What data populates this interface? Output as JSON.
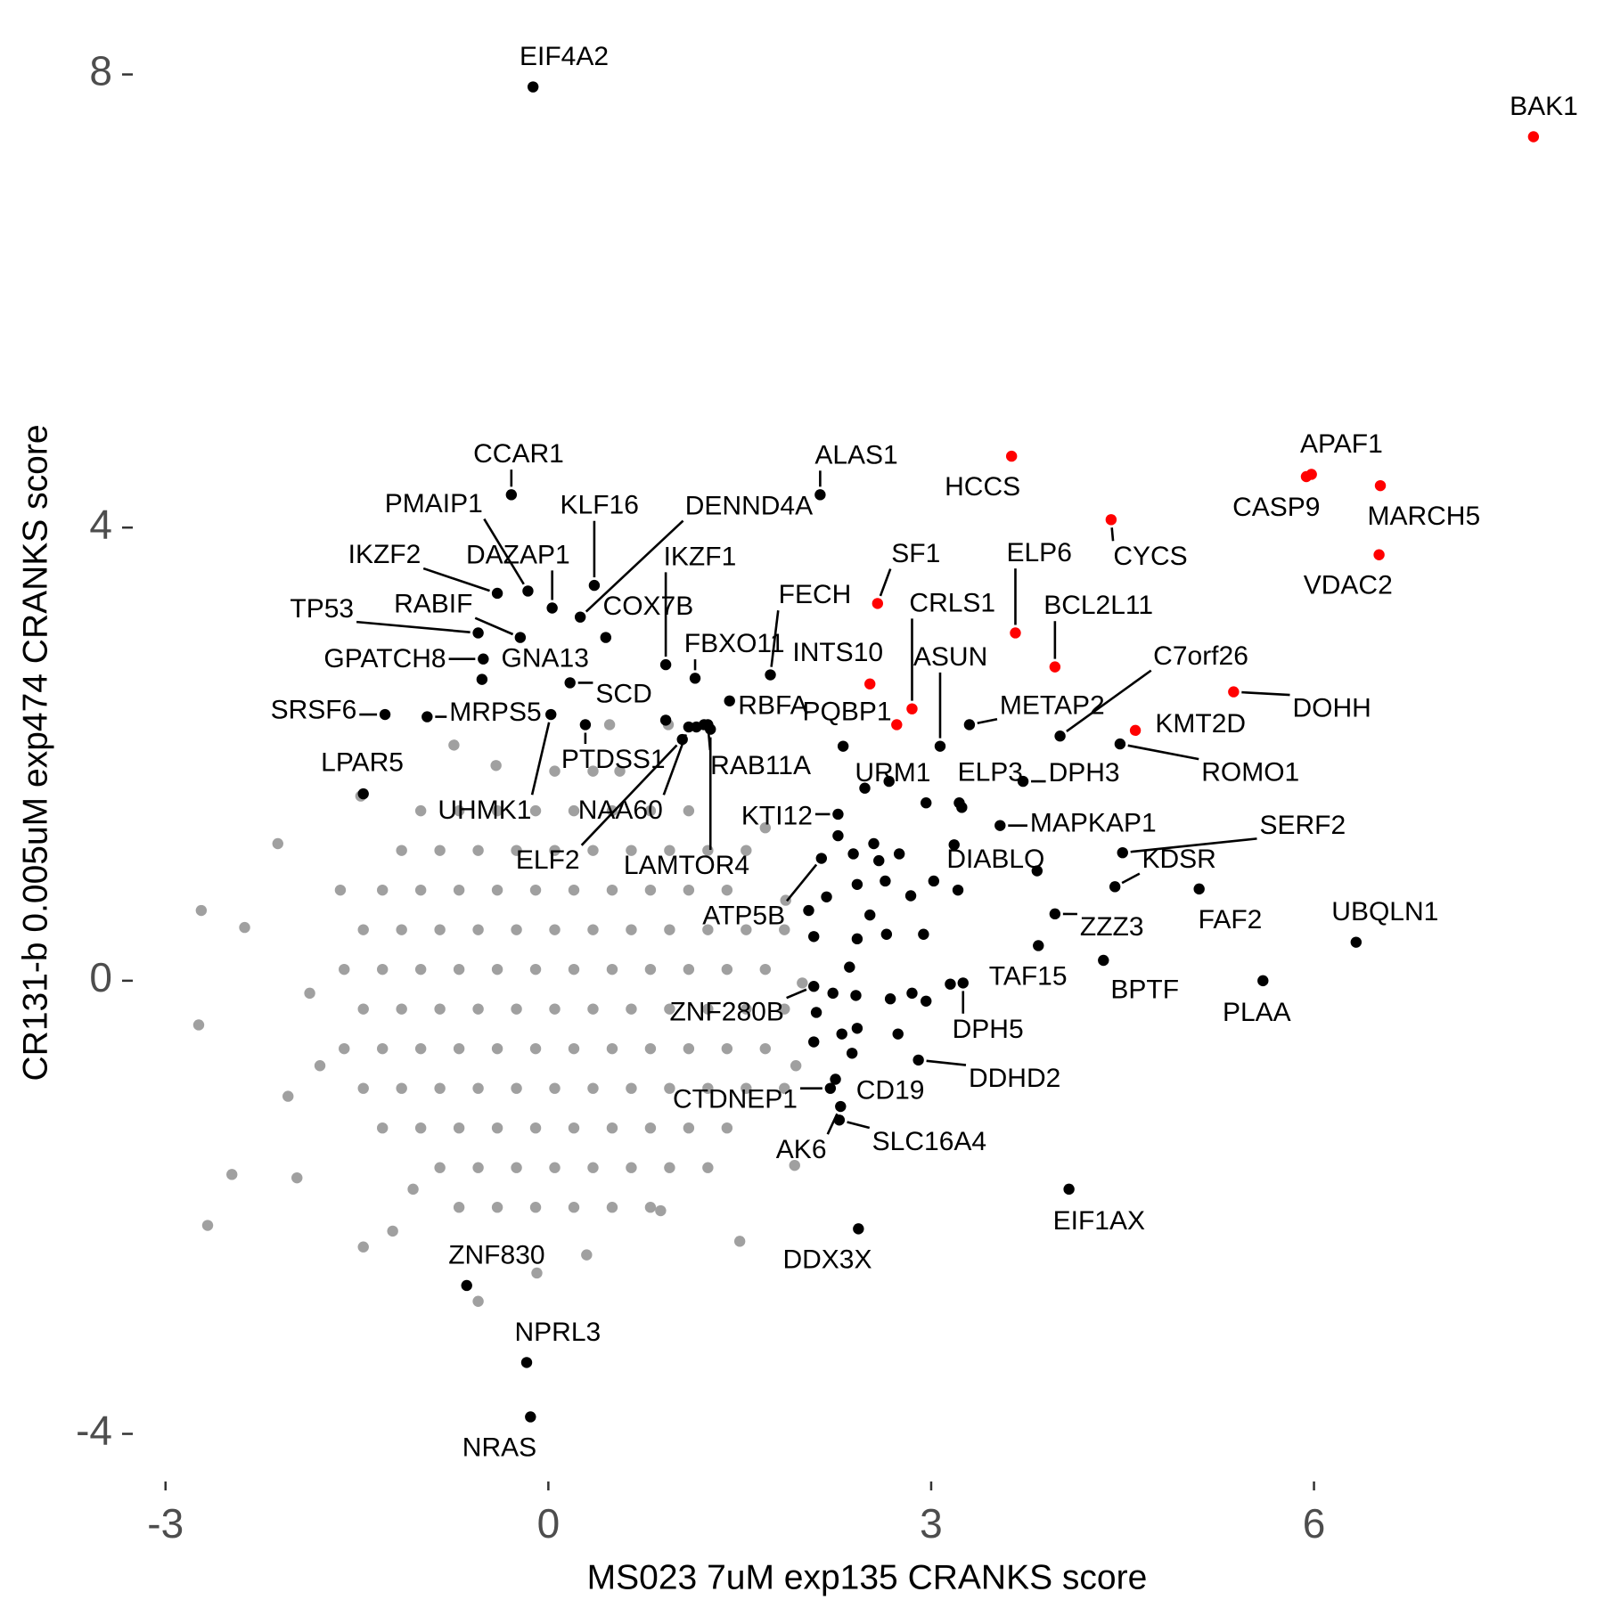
{
  "chart_data": {
    "type": "scatter",
    "x_label": "MS023 7uM exp135 CRANKS score",
    "y_label": "CR131-b 0.005uM exp474 CRANKS score",
    "xlim": [
      -3.3,
      8.2
    ],
    "ylim": [
      -4.4,
      8.4
    ],
    "xticks": [
      -3,
      0,
      3,
      6
    ],
    "yticks": [
      -4,
      0,
      4,
      8
    ],
    "grid": false,
    "series": [
      {
        "color": "#a0a0a0",
        "x": [
          -1.45,
          -1.6,
          -1.45,
          -1.6,
          -1.45,
          -1.3,
          -1.15,
          -1.3,
          -1.15,
          -1.3,
          -1.15,
          -1.3,
          -1.15,
          -0.85,
          -1.0,
          -0.85,
          -1.0,
          -0.85,
          -1.0,
          -0.85,
          -1.0,
          -0.85,
          -1.0,
          -0.7,
          -0.55,
          -0.7,
          -0.55,
          -0.7,
          -0.55,
          -0.7,
          -0.55,
          -0.7,
          -0.55,
          -0.7,
          -0.4,
          -0.25,
          -0.4,
          -0.25,
          -0.4,
          -0.25,
          -0.4,
          -0.25,
          -0.4,
          -0.25,
          -0.4,
          -0.1,
          0.05,
          -0.1,
          0.05,
          -0.1,
          0.05,
          -0.1,
          0.05,
          -0.1,
          0.05,
          -0.1,
          0.05,
          0.2,
          0.35,
          0.2,
          0.35,
          0.2,
          0.35,
          0.2,
          0.35,
          0.2,
          0.35,
          0.2,
          0.35,
          0.5,
          0.65,
          0.5,
          0.65,
          0.5,
          0.65,
          0.5,
          0.65,
          0.5,
          0.65,
          0.5,
          0.8,
          0.95,
          0.8,
          0.95,
          0.8,
          0.95,
          0.8,
          0.95,
          0.8,
          0.95,
          0.8,
          1.25,
          1.1,
          1.25,
          1.1,
          1.25,
          1.1,
          1.25,
          1.1,
          1.25,
          1.1,
          1.4,
          1.55,
          1.4,
          1.55,
          1.4,
          1.55,
          1.4,
          1.55,
          1.85,
          1.7,
          1.85,
          1.7,
          1.85,
          -2.67,
          -2.72,
          -2.74,
          -2.48,
          -2.38,
          -2.12,
          -1.47,
          -1.45,
          -0.74,
          0.48,
          0.94,
          1.5,
          1.93,
          0.3,
          -0.55,
          -1.97,
          -2.04,
          1.7,
          1.86,
          1.99,
          1.94,
          -1.63,
          -1.87,
          -1.79,
          -1.06,
          0.88,
          -0.09,
          0.56,
          -0.41,
          -1.22
        ],
        "values": [
          -0.95,
          -0.6,
          -0.25,
          0.1,
          0.45,
          -1.3,
          -0.95,
          -0.6,
          -0.25,
          0.1,
          0.45,
          0.8,
          1.15,
          -1.65,
          -1.3,
          -0.95,
          -0.6,
          -0.25,
          0.1,
          0.45,
          0.8,
          1.15,
          1.5,
          -2.0,
          -1.65,
          -1.3,
          -0.95,
          -0.6,
          -0.25,
          0.1,
          0.45,
          0.8,
          1.15,
          1.5,
          -2.0,
          -1.65,
          -1.3,
          -0.95,
          -0.6,
          -0.25,
          0.1,
          0.45,
          0.8,
          1.15,
          1.5,
          -2.0,
          -1.65,
          -1.3,
          -0.95,
          -0.6,
          -0.25,
          0.1,
          0.45,
          0.8,
          1.15,
          1.5,
          1.85,
          -2.0,
          -1.65,
          -1.3,
          -0.95,
          -0.6,
          -0.25,
          0.1,
          0.45,
          0.8,
          1.15,
          1.5,
          1.85,
          -2.0,
          -1.65,
          -1.3,
          -0.95,
          -0.6,
          -0.25,
          0.1,
          0.45,
          0.8,
          1.15,
          1.5,
          -2.0,
          -1.65,
          -1.3,
          -0.95,
          -0.6,
          -0.25,
          0.1,
          0.45,
          0.8,
          1.15,
          1.5,
          -1.65,
          -1.3,
          -0.95,
          -0.6,
          -0.25,
          0.1,
          0.45,
          0.8,
          1.15,
          1.5,
          -1.3,
          -0.95,
          -0.6,
          -0.25,
          0.1,
          0.45,
          0.8,
          1.15,
          -0.95,
          -0.6,
          -0.25,
          0.1,
          0.45,
          -2.16,
          0.62,
          -0.39,
          -1.71,
          0.47,
          1.21,
          1.63,
          -2.35,
          2.08,
          2.26,
          2.26,
          -2.3,
          -1.63,
          -2.42,
          -2.83,
          -1.74,
          -1.02,
          1.35,
          0.71,
          -0.02,
          -0.75,
          0.8,
          -0.11,
          -0.75,
          -1.84,
          -2.03,
          -2.58,
          1.85,
          1.9,
          -2.21
        ]
      },
      {
        "color": "#000000",
        "x": [
          1.16,
          0.92,
          1.22,
          2.48,
          2.67,
          2.96,
          3.24,
          3.18,
          2.55,
          2.75,
          2.59,
          2.42,
          2.64,
          2.84,
          3.02,
          3.21,
          2.27,
          2.39,
          2.18,
          2.04,
          2.08,
          2.52,
          2.65,
          2.94,
          2.42,
          2.36,
          2.41,
          2.23,
          2.1,
          2.3,
          2.42,
          2.68,
          2.85,
          2.96,
          3.15,
          2.74,
          2.08,
          2.38
        ],
        "values": [
          2.24,
          2.3,
          2.26,
          1.7,
          1.76,
          1.57,
          1.53,
          1.2,
          1.21,
          1.12,
          1.06,
          0.85,
          0.88,
          0.75,
          0.88,
          0.8,
          1.28,
          1.12,
          0.74,
          0.62,
          0.39,
          0.58,
          0.41,
          0.41,
          0.37,
          0.12,
          -0.13,
          -0.11,
          -0.28,
          -0.47,
          -0.42,
          -0.16,
          -0.11,
          -0.18,
          -0.03,
          -0.47,
          -0.54,
          -0.64
        ]
      },
      {
        "color": "#000000",
        "labels": [
          "EIF4A2",
          "CCAR1",
          "ALAS1",
          "PMAIP1",
          "KLF16",
          "DENND4A",
          "IKZF2",
          "DAZAP1",
          "RABIF",
          "COX7B",
          "TP53",
          "GPATCH8",
          "GNA13",
          "SCD",
          "SRSF6",
          "MRPS5",
          "UHMK1",
          "LPAR5",
          "PTDSS1",
          "IKZF1",
          "FBXO11",
          "FECH",
          "RBFA",
          "RAB11A",
          "NAA60",
          "ELF2",
          "LAMTOR4",
          "URM1",
          "ASUN",
          "ELP3",
          "METAP2",
          "C7orf26",
          "DPH3",
          "ROMO1",
          "KTI12",
          "MAPKAP1",
          "SERF2",
          "DIABLO",
          "KDSR",
          "FAF2",
          "UBQLN1",
          "ATP5B",
          "ZZZ3",
          "TAF15",
          "BPTF",
          "PLAA",
          "DPH5",
          "ZNF280B",
          "DDHD2",
          "CD19",
          "CTDNEP1",
          "SLC16A4",
          "AK6",
          "EIF1AX",
          "DDX3X",
          "ZNF830",
          "NPRL3",
          "NRAS"
        ],
        "x": [
          -0.12,
          -0.29,
          2.13,
          -0.16,
          0.36,
          0.25,
          -0.4,
          0.03,
          -0.22,
          0.45,
          -0.55,
          -0.51,
          -0.52,
          0.17,
          -1.28,
          -0.95,
          0.02,
          -1.45,
          0.29,
          0.92,
          1.15,
          1.74,
          1.42,
          1.25,
          1.1,
          1.05,
          1.27,
          2.31,
          3.07,
          3.22,
          3.3,
          4.01,
          3.72,
          4.48,
          2.27,
          3.54,
          4.5,
          3.83,
          4.44,
          5.1,
          6.33,
          2.14,
          3.97,
          3.84,
          4.35,
          5.6,
          3.25,
          2.08,
          2.9,
          2.25,
          2.21,
          2.28,
          2.29,
          4.08,
          2.43,
          -0.64,
          -0.17,
          -0.14
        ],
        "values": [
          7.89,
          4.29,
          4.29,
          3.44,
          3.49,
          3.21,
          3.42,
          3.29,
          3.03,
          3.03,
          3.07,
          2.84,
          2.66,
          2.63,
          2.35,
          2.33,
          2.35,
          1.65,
          2.26,
          2.79,
          2.67,
          2.7,
          2.47,
          2.26,
          2.24,
          2.13,
          2.22,
          2.07,
          2.07,
          1.57,
          2.26,
          2.16,
          1.76,
          2.09,
          1.47,
          1.37,
          1.13,
          0.97,
          0.83,
          0.81,
          0.34,
          1.08,
          0.59,
          0.31,
          0.18,
          0,
          -0.02,
          -0.05,
          -0.7,
          -0.87,
          -0.95,
          -1.23,
          -1.11,
          -1.84,
          -2.19,
          -2.69,
          -3.37,
          -3.85
        ]
      },
      {
        "color": "#ff0000",
        "labels": [
          "BAK1",
          "HCCS",
          "APAF1",
          "CASP9",
          "MARCH5",
          "CYCS",
          "VDAC2",
          "SF1",
          "ELP6",
          "BCL2L11",
          "INTS10",
          "CRLS1",
          "PQBP1",
          "KMT2D",
          "DOHH"
        ],
        "x": [
          7.72,
          3.63,
          5.98,
          5.94,
          6.52,
          4.41,
          6.51,
          2.58,
          3.66,
          3.97,
          2.52,
          2.85,
          2.73,
          4.6,
          5.37
        ],
        "values": [
          7.45,
          4.63,
          4.47,
          4.45,
          4.37,
          4.07,
          3.76,
          3.33,
          3.07,
          2.77,
          2.62,
          2.4,
          2.26,
          2.21,
          2.55
        ]
      }
    ]
  }
}
